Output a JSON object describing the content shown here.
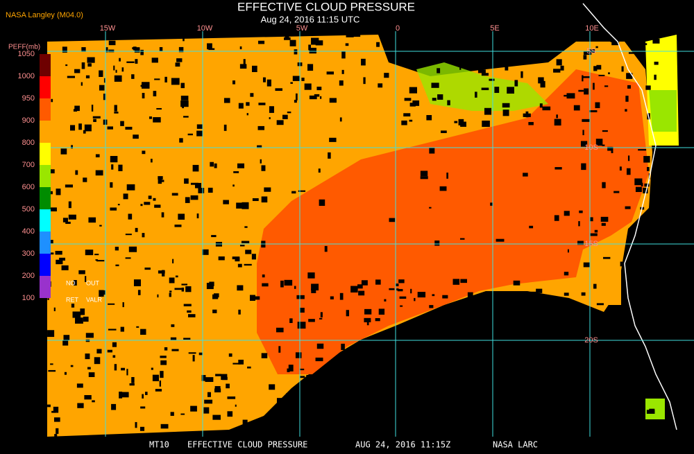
{
  "header": {
    "source": "NASA Langley (M04.0)",
    "title": "EFFECTIVE CLOUD PRESSURE",
    "subtitle": "Aug 24, 2016 11:15 UTC"
  },
  "legend": {
    "title": "PEFF(mb)",
    "ticks": [
      1050,
      1000,
      950,
      900,
      800,
      700,
      600,
      500,
      400,
      300,
      200,
      100
    ],
    "colors": [
      "#6e0000",
      "#ff0000",
      "#ff5a00",
      "#ffa500",
      "#ffff00",
      "#9ae600",
      "#008c00",
      "#00ffff",
      "#1e90ff",
      "#0000ff",
      "#9932cc"
    ],
    "notes": [
      "NO",
      "OUT",
      "RET",
      "VALR"
    ]
  },
  "grid": {
    "longitudes": [
      "15W",
      "10W",
      "5W",
      "0",
      "5E",
      "10E"
    ],
    "latitudes": [
      "5S",
      "10S",
      "15S",
      "20S"
    ]
  },
  "footer": [
    "MT10",
    "EFFECTIVE CLOUD PRESSURE",
    "AUG 24, 2016 11:15Z",
    "NASA LARC"
  ]
}
